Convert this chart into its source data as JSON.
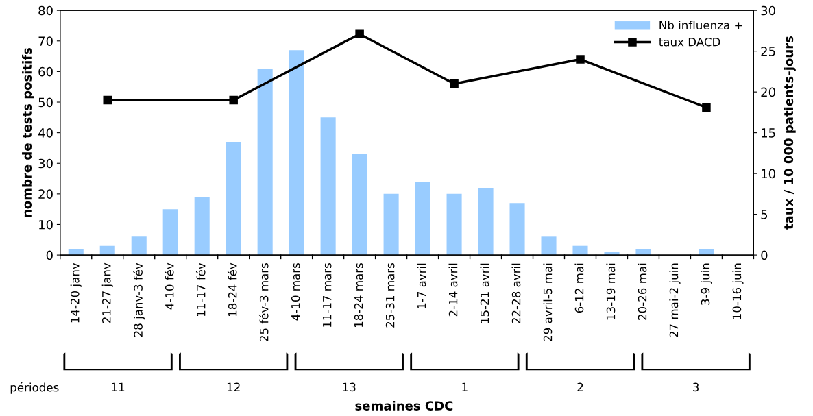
{
  "chart_data": {
    "type": "bar",
    "categories": [
      "14-20 janv",
      "21-27 janv",
      "28 janv-3 fév",
      "4-10 fév",
      "11-17 fév",
      "18-24 fév",
      "25 fév-3 mars",
      "4-10 mars",
      "11-17 mars",
      "18-24 mars",
      "25-31 mars",
      "1-7 avril",
      "2-14 avril",
      "15-21 avril",
      "22-28 avril",
      "29 avril-5 mai",
      "6-12 mai",
      "13-19 mai",
      "20-26 mai",
      "27 mai-2 juin",
      "3-9 juin",
      "10-16 juin"
    ],
    "series": [
      {
        "name": "Nb influenza +",
        "type": "bar",
        "color": "#99ccff",
        "values": [
          2,
          3,
          6,
          15,
          19,
          37,
          61,
          67,
          45,
          33,
          20,
          24,
          20,
          22,
          17,
          6,
          3,
          1,
          2,
          0,
          2,
          0
        ]
      },
      {
        "name": "taux DACD",
        "type": "line",
        "axis": "y2",
        "color": "#000000",
        "marker": "square",
        "values": [
          null,
          19,
          null,
          null,
          null,
          19,
          null,
          null,
          null,
          27.1,
          null,
          null,
          21,
          null,
          null,
          null,
          24,
          null,
          null,
          null,
          18.1,
          null
        ]
      }
    ],
    "xlabel": "semaines CDC",
    "ylabel": "nombre de tests positifs",
    "y2label": "taux / 10 000 patients-jours",
    "ylim": [
      0,
      80
    ],
    "yticks": [
      0,
      10,
      20,
      30,
      40,
      50,
      60,
      70,
      80
    ],
    "y2lim": [
      0,
      30
    ],
    "y2ticks": [
      0,
      5,
      10,
      15,
      20,
      25,
      30
    ],
    "legend": "top right",
    "grid": false,
    "annotations": [
      "périodes",
      "11",
      "12",
      "13",
      "1",
      "2",
      "3"
    ]
  }
}
